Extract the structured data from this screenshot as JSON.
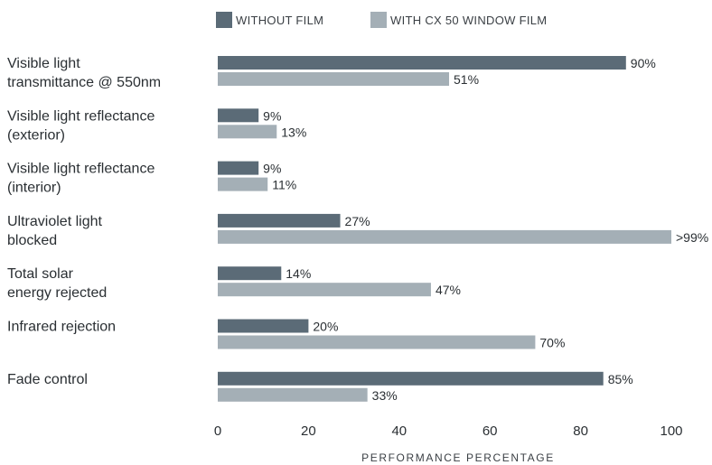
{
  "chart_data": {
    "type": "bar",
    "orientation": "horizontal",
    "categories": [
      [
        "Visible light",
        "transmittance @ 550nm"
      ],
      [
        "Visible light reflectance",
        "(exterior)"
      ],
      [
        "Visible light reflectance",
        "(interior)"
      ],
      [
        "Ultraviolet light",
        "blocked"
      ],
      [
        "Total solar",
        "energy rejected"
      ],
      [
        "Infrared rejection"
      ],
      [
        "Fade control"
      ]
    ],
    "series": [
      {
        "name": "WITHOUT FILM",
        "color": "#5b6b77",
        "values": [
          90,
          9,
          9,
          27,
          14,
          20,
          85
        ],
        "labels": [
          "90%",
          "9%",
          "9%",
          "27%",
          "14%",
          "20%",
          "85%"
        ]
      },
      {
        "name": "WITH CX 50 WINDOW FILM",
        "color": "#a4afb6",
        "values": [
          51,
          13,
          11,
          100,
          47,
          70,
          33
        ],
        "labels": [
          "51%",
          "13%",
          "11%",
          ">99%",
          "47%",
          "70%",
          "33%"
        ]
      }
    ],
    "xticks": [
      "0",
      "20",
      "40",
      "60",
      "80",
      "100"
    ],
    "xlim": [
      0,
      100
    ],
    "xlabel": "PERFORMANCE PERCENTAGE",
    "legend_position": "top",
    "grid": false
  }
}
